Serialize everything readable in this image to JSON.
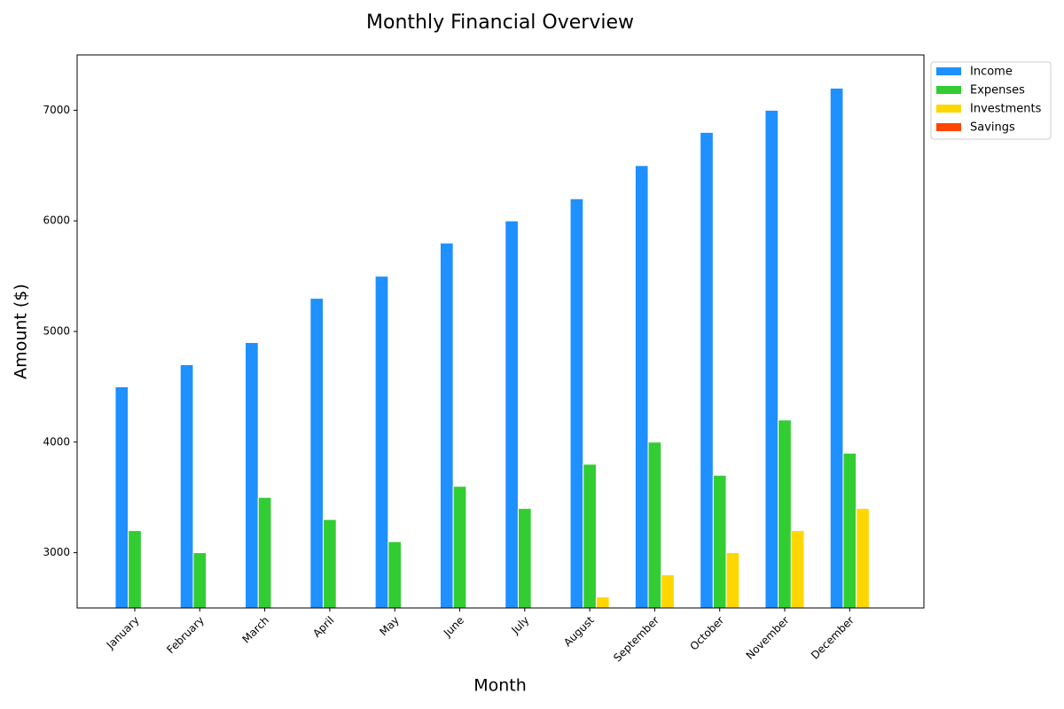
{
  "chart_data": {
    "type": "bar",
    "title": "Monthly Financial Overview",
    "x_label": "Month",
    "y_label": "Amount ($)",
    "categories": [
      "January",
      "February",
      "March",
      "April",
      "May",
      "June",
      "July",
      "August",
      "September",
      "October",
      "November",
      "December"
    ],
    "series": [
      {
        "name": "Income",
        "color": "#1e90ff",
        "values": [
          4500,
          4700,
          4900,
          5300,
          5500,
          5800,
          6000,
          6200,
          6500,
          6800,
          7000,
          7200
        ]
      },
      {
        "name": "Expenses",
        "color": "#32cd32",
        "values": [
          3200,
          3000,
          3500,
          3300,
          3100,
          3600,
          3400,
          3800,
          4000,
          3700,
          4200,
          3900
        ]
      },
      {
        "name": "Investments",
        "color": "#ffd700",
        "values": [
          null,
          null,
          null,
          null,
          null,
          null,
          null,
          2600,
          2800,
          3000,
          3200,
          3400
        ]
      },
      {
        "name": "Savings",
        "color": "#ff4500",
        "values": [
          null,
          null,
          null,
          null,
          null,
          null,
          null,
          null,
          null,
          null,
          null,
          null
        ]
      }
    ],
    "ylim": [
      2500,
      7500
    ],
    "yticks": [
      3000,
      4000,
      5000,
      6000,
      7000
    ],
    "legend": "upper right outside"
  }
}
